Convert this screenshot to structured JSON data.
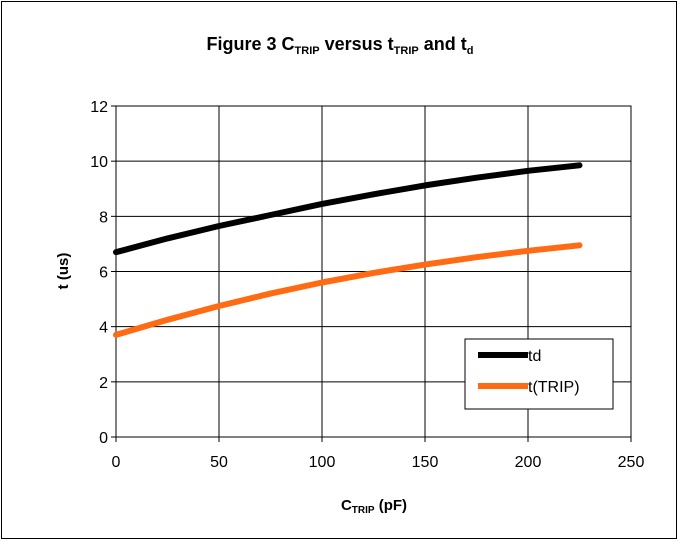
{
  "chart_data": {
    "type": "line",
    "title": {
      "prefix": "Figure 3  C",
      "sub1": "TRIP",
      "mid": " versus t",
      "sub2": "TRIP",
      "mid2": " and t",
      "sub3": "d"
    },
    "xlabel": {
      "main": "C",
      "sub": "TRIP",
      "suffix": " (pF)"
    },
    "ylabel": "t (us)",
    "xlim": [
      0,
      250
    ],
    "ylim": [
      0,
      12
    ],
    "xticks": [
      0,
      50,
      100,
      150,
      200,
      250
    ],
    "yticks": [
      0,
      2,
      4,
      6,
      8,
      10,
      12
    ],
    "grid": true,
    "legend": "bottom-right inside",
    "series": [
      {
        "name": "td",
        "color": "#000000",
        "x": [
          0,
          25,
          50,
          75,
          100,
          125,
          150,
          175,
          200,
          225
        ],
        "y": [
          6.7,
          7.2,
          7.65,
          8.05,
          8.45,
          8.8,
          9.12,
          9.4,
          9.65,
          9.85
        ]
      },
      {
        "name": "t(TRIP)",
        "color": "#ff6a13",
        "x": [
          0,
          25,
          50,
          75,
          100,
          125,
          150,
          175,
          200,
          225
        ],
        "y": [
          3.7,
          4.25,
          4.75,
          5.2,
          5.6,
          5.95,
          6.25,
          6.52,
          6.75,
          6.95
        ]
      }
    ]
  }
}
